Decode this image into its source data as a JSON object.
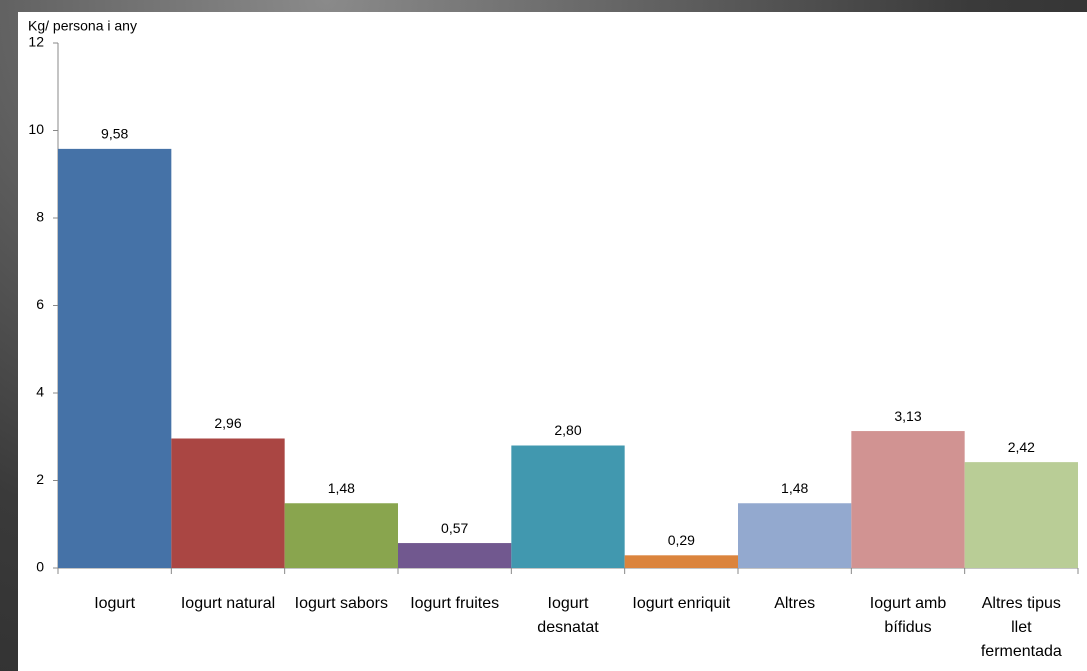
{
  "chart_data": {
    "type": "bar",
    "y_axis_label": "Kg/ persona i any",
    "categories": [
      "Iogurt",
      "Iogurt natural",
      "Iogurt sabors",
      "Iogurt fruites",
      "Iogurt desnatat",
      "Iogurt enriquit",
      "Altres",
      "Iogurt amb bífidus",
      "Altres tipus llet fermentada"
    ],
    "values": [
      9.58,
      2.96,
      1.48,
      0.57,
      2.8,
      0.29,
      1.48,
      3.13,
      2.42
    ],
    "value_labels": [
      "9,58",
      "2,96",
      "1,48",
      "0,57",
      "2,80",
      "0,29",
      "1,48",
      "3,13",
      "2,42"
    ],
    "colors": [
      "#4572a7",
      "#aa4643",
      "#89a54e",
      "#71588f",
      "#4198af",
      "#db843d",
      "#93a9cf",
      "#d19392",
      "#b9cd96"
    ],
    "ylim": [
      0,
      12
    ],
    "yticks": [
      0,
      2,
      4,
      6,
      8,
      10,
      12
    ],
    "grid": false
  }
}
